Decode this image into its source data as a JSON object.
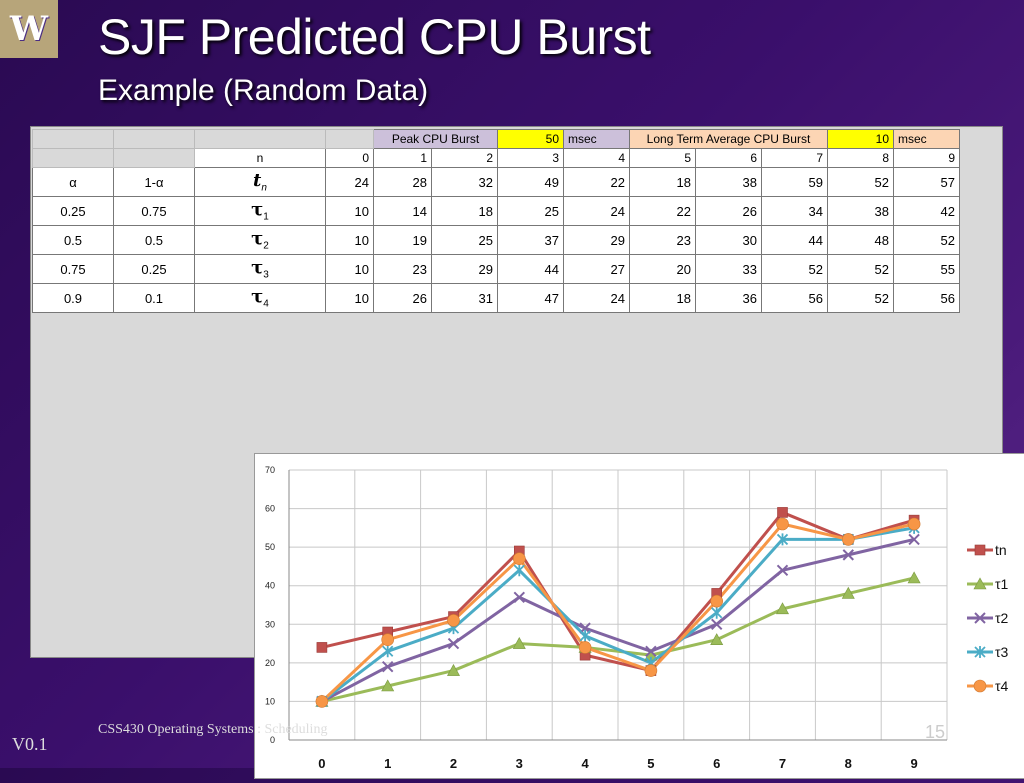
{
  "logo": {
    "letter": "W"
  },
  "slide": {
    "title": "SJF Predicted CPU Burst",
    "subtitle": "Example (Random Data)",
    "footer": "CSS430 Operating Systems : Scheduling",
    "version": "V0.1",
    "page_number": "15"
  },
  "table": {
    "peak_label": "Peak CPU Burst",
    "peak_value": "50",
    "peak_unit": "msec",
    "lta_label": "Long Term Average CPU Burst",
    "lta_value": "10",
    "lta_unit": "msec",
    "n_label": "n",
    "n_values": [
      "0",
      "1",
      "2",
      "3",
      "4",
      "5",
      "6",
      "7",
      "8",
      "9"
    ],
    "alpha_header": "α",
    "one_minus_alpha_header": "1-α",
    "tn_symbol": "t",
    "tn_subscript": "n",
    "tn_values": [
      "24",
      "28",
      "32",
      "49",
      "22",
      "18",
      "38",
      "59",
      "52",
      "57"
    ],
    "rows": [
      {
        "alpha": "0.25",
        "one_minus_alpha": "0.75",
        "symbol": "τ",
        "subscript": "1",
        "values": [
          "10",
          "14",
          "18",
          "25",
          "24",
          "22",
          "26",
          "34",
          "38",
          "42"
        ]
      },
      {
        "alpha": "0.5",
        "one_minus_alpha": "0.5",
        "symbol": "τ",
        "subscript": "2",
        "values": [
          "10",
          "19",
          "25",
          "37",
          "29",
          "23",
          "30",
          "44",
          "48",
          "52"
        ]
      },
      {
        "alpha": "0.75",
        "one_minus_alpha": "0.25",
        "symbol": "τ",
        "subscript": "3",
        "values": [
          "10",
          "23",
          "29",
          "44",
          "27",
          "20",
          "33",
          "52",
          "52",
          "55"
        ]
      },
      {
        "alpha": "0.9",
        "one_minus_alpha": "0.1",
        "symbol": "τ",
        "subscript": "4",
        "values": [
          "10",
          "26",
          "31",
          "47",
          "24",
          "18",
          "36",
          "56",
          "52",
          "56"
        ]
      }
    ]
  },
  "chart_data": {
    "type": "line",
    "title": "",
    "xlabel": "",
    "ylabel": "",
    "x": [
      0,
      1,
      2,
      3,
      4,
      5,
      6,
      7,
      8,
      9
    ],
    "ylim": [
      0,
      70
    ],
    "yticks": [
      0,
      10,
      20,
      30,
      40,
      50,
      60,
      70
    ],
    "grid": true,
    "legend": "right",
    "series": [
      {
        "name": "tn",
        "color": "#c0504d",
        "marker": "square",
        "values": [
          24,
          28,
          32,
          49,
          22,
          18,
          38,
          59,
          52,
          57
        ]
      },
      {
        "name": "τ1",
        "color": "#9bbb59",
        "marker": "triangle",
        "values": [
          10,
          14,
          18,
          25,
          24,
          22,
          26,
          34,
          38,
          42
        ]
      },
      {
        "name": "τ2",
        "color": "#8064a2",
        "marker": "x",
        "values": [
          10,
          19,
          25,
          37,
          29,
          23,
          30,
          44,
          48,
          52
        ]
      },
      {
        "name": "τ3",
        "color": "#4bacc6",
        "marker": "star",
        "values": [
          10,
          23,
          29,
          44,
          27,
          20,
          33,
          52,
          52,
          55
        ]
      },
      {
        "name": "τ4",
        "color": "#f79646",
        "marker": "circle",
        "values": [
          10,
          26,
          31,
          47,
          24,
          18,
          36,
          56,
          52,
          56
        ]
      }
    ]
  }
}
